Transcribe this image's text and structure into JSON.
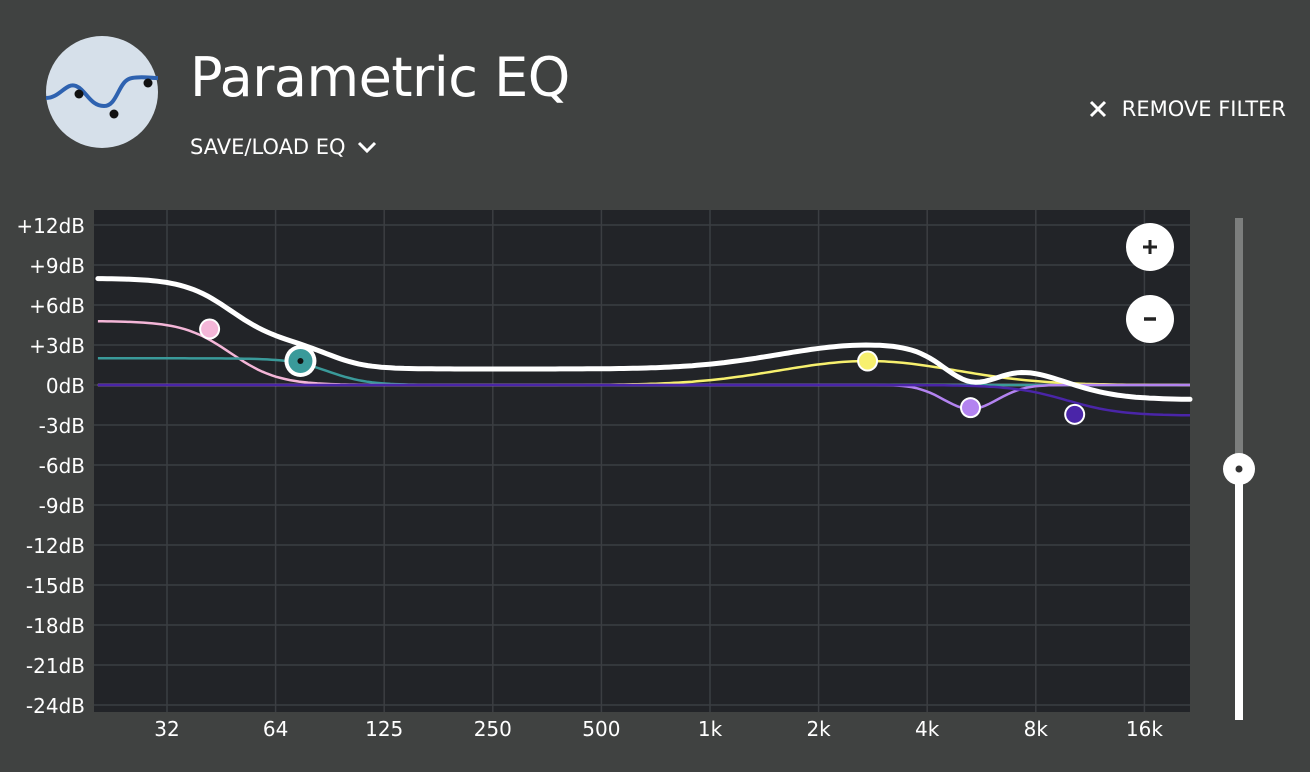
{
  "header": {
    "app_icon": "eq-curve-icon",
    "title": "Parametric EQ",
    "save_load_label": "SAVE/LOAD EQ",
    "remove_filter_label": "REMOVE FILTER"
  },
  "eq": {
    "db_labels": [
      "+12dB",
      "+9dB",
      "+6dB",
      "+3dB",
      "0dB",
      "-3dB",
      "-6dB",
      "-9dB",
      "-12dB",
      "-15dB",
      "-18dB",
      "-21dB",
      "-24dB"
    ],
    "freq_labels": [
      "32",
      "64",
      "125",
      "250",
      "500",
      "1k",
      "2k",
      "4k",
      "8k",
      "16k"
    ],
    "filters": [
      {
        "name": "low-shelf-pink",
        "color": "#f4b6d8",
        "freq_hz": 42,
        "gain_db": 4.2
      },
      {
        "name": "low-shelf-teal",
        "color": "#3a9a9a",
        "freq_hz": 75,
        "gain_db": 1.8,
        "selected": true
      },
      {
        "name": "peak-yellow",
        "color": "#f7f06e",
        "freq_hz": 2800,
        "gain_db": 1.8
      },
      {
        "name": "notch-lavender",
        "color": "#b383f0",
        "freq_hz": 5400,
        "gain_db": -1.7
      },
      {
        "name": "notch-indigo",
        "color": "#4a25a8",
        "freq_hz": 10500,
        "gain_db": -2.2
      }
    ],
    "overall_color": "#ffffff"
  },
  "zoom": {
    "in_icon": "plus-icon",
    "out_icon": "minus-icon"
  },
  "range_slider": {
    "value_fraction": 0.5
  }
}
